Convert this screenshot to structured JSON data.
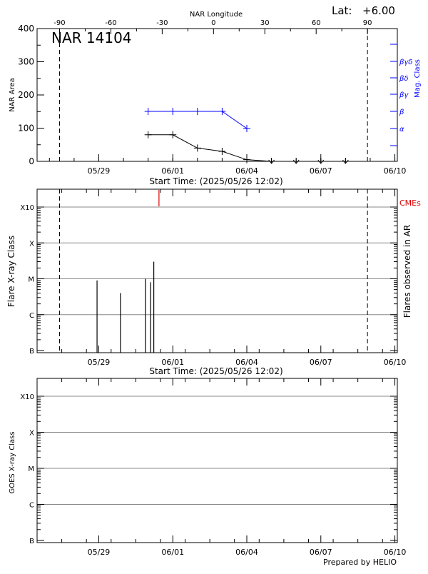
{
  "header": {
    "lat_label": "Lat:",
    "lat_value": "+6.00",
    "credit": "Prepared by HELIO"
  },
  "colors": {
    "nar": "#000000",
    "magclass": "#0000ff",
    "cme": "#dd0000",
    "grid": "#888888"
  },
  "chart_data": [
    {
      "type": "line",
      "title": "NAR 14104",
      "xlabel": "Start Time: (2025/05/26 12:02)",
      "ylabel": "NAR Area",
      "y2label": "Mag. Class",
      "top_axis_label": "NAR Longitude",
      "xlim_days": [
        0,
        14.6
      ],
      "ylim": [
        0,
        400
      ],
      "yticks": [
        "0",
        "100",
        "200",
        "300",
        "400"
      ],
      "top_ticks": [
        {
          "label": "-90",
          "day": 0.91
        },
        {
          "label": "-60",
          "day": 2.99
        },
        {
          "label": "-30",
          "day": 5.07
        },
        {
          "label": "0",
          "day": 7.15
        },
        {
          "label": "30",
          "day": 9.23
        },
        {
          "label": "60",
          "day": 11.31
        },
        {
          "label": "90",
          "day": 13.39
        }
      ],
      "x_ticks": [
        {
          "label": "05/29",
          "day": 2.5
        },
        {
          "label": "06/01",
          "day": 5.5
        },
        {
          "label": "06/04",
          "day": 8.5
        },
        {
          "label": "06/07",
          "day": 11.5
        },
        {
          "label": "06/10",
          "day": 14.5
        }
      ],
      "dashed_lines_days": [
        0.91,
        13.39
      ],
      "mag_class_ticks": [
        "",
        "α",
        "β",
        "βγ",
        "βδ",
        "βγδ"
      ],
      "series": [
        {
          "values": [
            {
              "day": 4.5,
              "area": 80
            },
            {
              "day": 5.5,
              "area": 80
            },
            {
              "day": 6.5,
              "area": 40
            },
            {
              "day": 7.5,
              "area": 30
            },
            {
              "day": 8.5,
              "area": 5
            },
            {
              "day": 9.5,
              "area": 0
            },
            {
              "day": 10.5,
              "area": 0
            },
            {
              "day": 11.5,
              "area": 0
            },
            {
              "day": 12.5,
              "area": 0
            }
          ]
        },
        {
          "values": [
            {
              "day": 4.5,
              "class": "β"
            },
            {
              "day": 5.5,
              "class": "β"
            },
            {
              "day": 6.5,
              "class": "β"
            },
            {
              "day": 7.5,
              "class": "β"
            },
            {
              "day": 8.5,
              "class": "α"
            }
          ]
        }
      ]
    },
    {
      "type": "bar",
      "xlabel": "Start Time: (2025/05/26 12:02)",
      "ylabel": "Flare X-ray Class",
      "y2label": "Flares observed in AR",
      "yticks": [
        "B",
        "C",
        "M",
        "X",
        "X10"
      ],
      "cme_label": "CMEs",
      "dashed_lines_days": [
        0.91,
        13.39
      ],
      "flares": [
        {
          "day": 2.43,
          "class": "C9"
        },
        {
          "day": 3.38,
          "class": "C4"
        },
        {
          "day": 4.39,
          "class": "M1"
        },
        {
          "day": 4.6,
          "class": "C8"
        },
        {
          "day": 4.73,
          "class": "M3"
        }
      ],
      "cmes_days": [
        4.94
      ]
    },
    {
      "type": "line",
      "ylabel": "GOES X-ray Class",
      "yticks": [
        "B",
        "C",
        "M",
        "X",
        "X10"
      ],
      "series": []
    }
  ]
}
